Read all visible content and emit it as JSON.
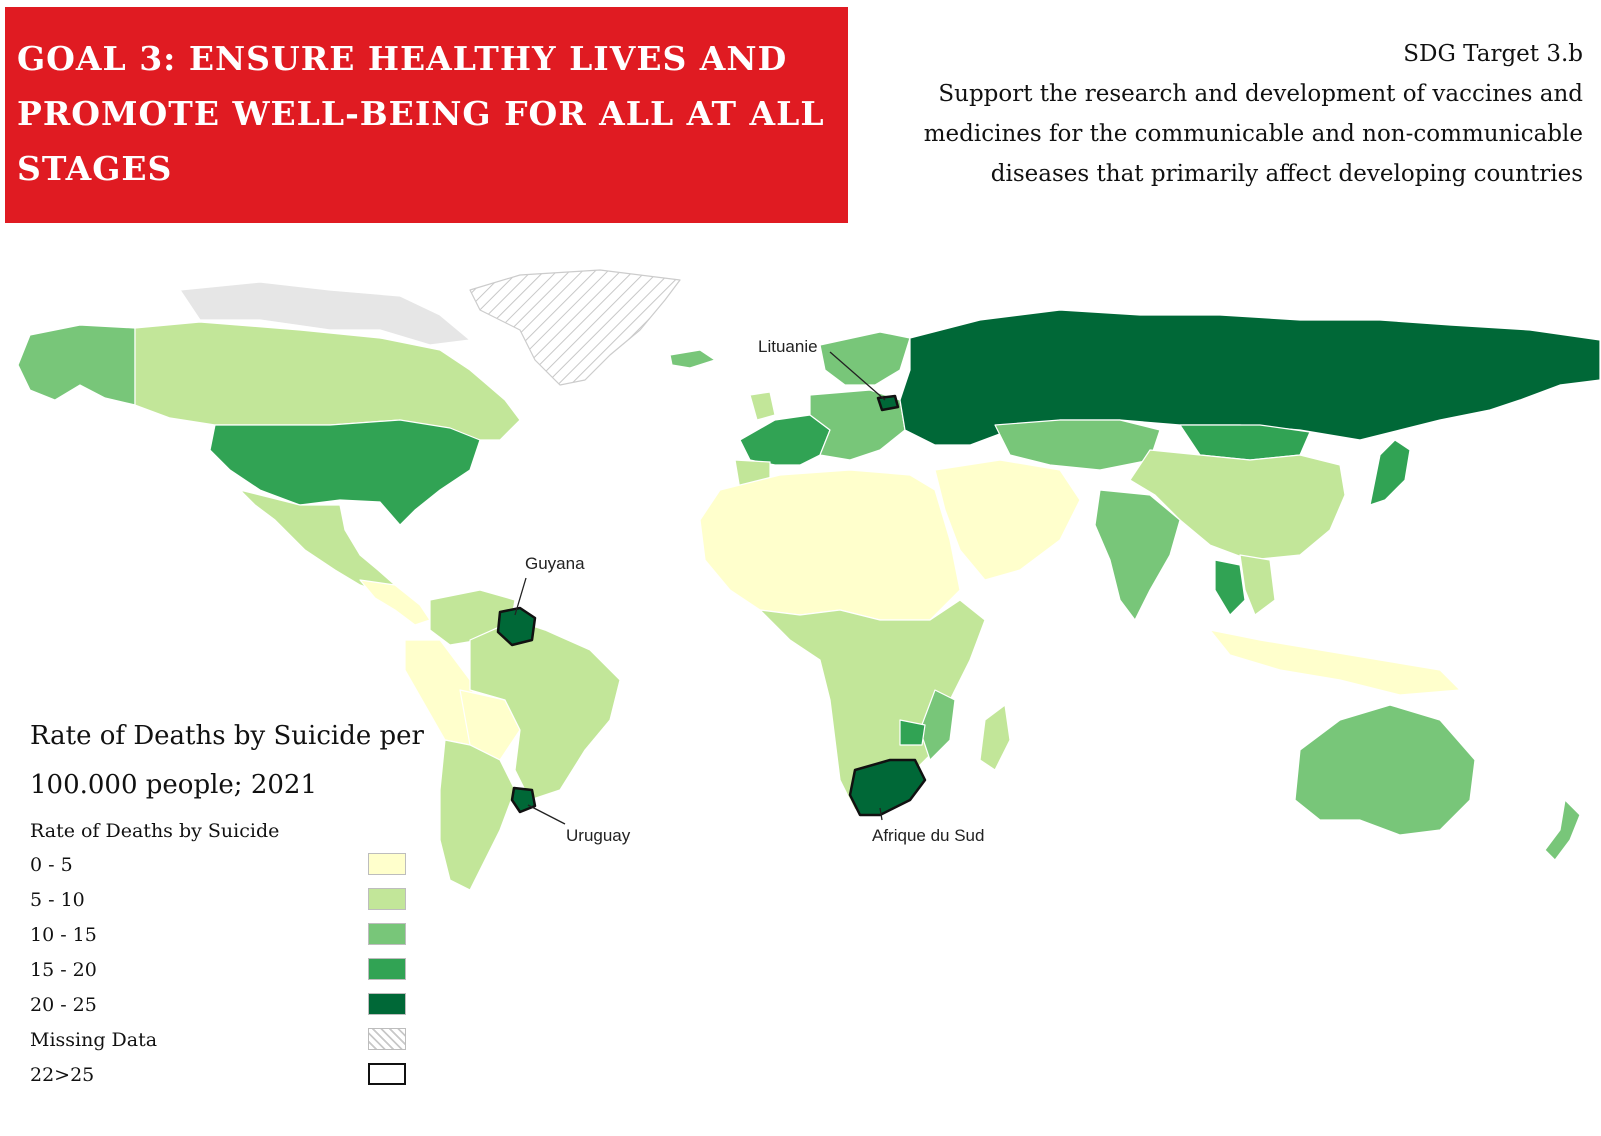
{
  "header": {
    "goal_title": "GOAL 3: ENSURE HEALTHY LIVES AND PROMOTE WELL-BEING FOR ALL AT ALL STAGES",
    "target_label": "SDG Target 3.b",
    "target_text": "Support the research and development of vaccines and medicines for the communicable and non-communicable diseases that primarily affect developing countries",
    "accent_color": "#e01b22"
  },
  "legend": {
    "title": "Rate of Deaths by Suicide per 100.000 people; 2021",
    "subtitle": "Rate of Deaths by Suicide",
    "classes": [
      {
        "label": "0 - 5",
        "color": "#ffffcc"
      },
      {
        "label": "5 - 10",
        "color": "#c2e699"
      },
      {
        "label": "10 - 15",
        "color": "#78c679"
      },
      {
        "label": "15 - 20",
        "color": "#31a354"
      },
      {
        "label": "20 - 25",
        "color": "#006837"
      },
      {
        "label": "Missing Data",
        "color": "hatch"
      },
      {
        "label": "22>25",
        "color": "outline"
      }
    ]
  },
  "callouts": [
    {
      "label": "Lituanie"
    },
    {
      "label": "Guyana"
    },
    {
      "label": "Uruguay"
    },
    {
      "label": "Afrique du Sud"
    }
  ]
}
